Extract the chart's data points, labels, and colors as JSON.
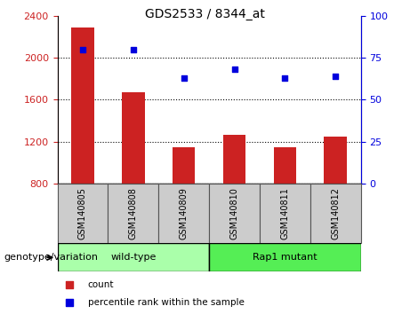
{
  "title": "GDS2533 / 8344_at",
  "categories": [
    "GSM140805",
    "GSM140808",
    "GSM140809",
    "GSM140810",
    "GSM140811",
    "GSM140812"
  ],
  "bar_values": [
    2290,
    1670,
    1145,
    1265,
    1145,
    1250
  ],
  "scatter_values": [
    80,
    80,
    63,
    68,
    63,
    64
  ],
  "ylim_left": [
    800,
    2400
  ],
  "ylim_right": [
    0,
    100
  ],
  "yticks_left": [
    800,
    1200,
    1600,
    2000,
    2400
  ],
  "yticks_right": [
    0,
    25,
    50,
    75,
    100
  ],
  "bar_color": "#cc2222",
  "scatter_color": "#0000dd",
  "bar_bottom": 800,
  "groups": [
    {
      "label": "wild-type",
      "spans": [
        0,
        3
      ],
      "color": "#aaffaa"
    },
    {
      "label": "Rap1 mutant",
      "spans": [
        3,
        6
      ],
      "color": "#55ee55"
    }
  ],
  "group_label": "genotype/variation",
  "legend_items": [
    {
      "label": "count",
      "color": "#cc2222"
    },
    {
      "label": "percentile rank within the sample",
      "color": "#0000dd"
    }
  ],
  "tick_color_left": "#cc2222",
  "tick_color_right": "#0000dd",
  "grid_color": "black",
  "grid_linestyle": "dotted",
  "grid_linewidth": 0.8,
  "bar_width": 0.45,
  "xlabel_fontsize": 7,
  "title_fontsize": 10,
  "tick_fontsize": 8,
  "legend_fontsize": 7.5,
  "group_fontsize": 8,
  "genotype_label_fontsize": 8,
  "sample_box_color": "#cccccc",
  "sample_box_edgecolor": "#555555"
}
